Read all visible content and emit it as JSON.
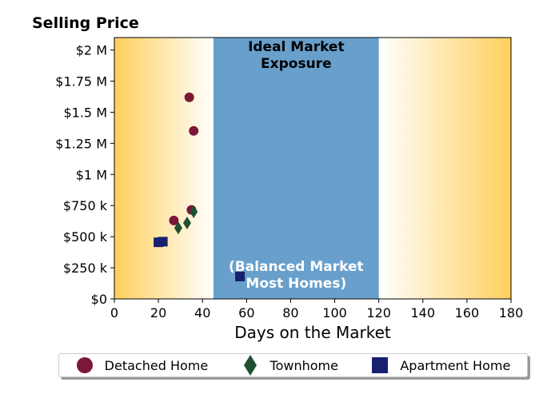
{
  "chart_data": {
    "type": "scatter",
    "title": "Selling Price",
    "xlabel": "Days on the Market",
    "ylabel": "",
    "xlim": [
      0,
      180
    ],
    "ylim": [
      0,
      2100000
    ],
    "x_ticks": [
      0,
      20,
      40,
      60,
      80,
      100,
      120,
      140,
      160,
      180
    ],
    "x_tick_labels": [
      "0",
      "20",
      "40",
      "60",
      "80",
      "100",
      "120",
      "140",
      "160",
      "180"
    ],
    "y_ticks": [
      0,
      250000,
      500000,
      750000,
      1000000,
      1250000,
      1500000,
      1750000,
      2000000
    ],
    "y_tick_labels": [
      "$0",
      "$250 k",
      "$500 k",
      "$750 k",
      "$1 M",
      "$1.25 M",
      "$1.5 M",
      "$1.75 M",
      "$2 M"
    ],
    "ideal_band": {
      "x_range": [
        45,
        120
      ],
      "label_top": "Ideal Market\nExposure",
      "label_bottom": "(Balanced Market\nMost Homes)",
      "color": "#689fcb"
    },
    "background_gradient_color": "#ffcf5c",
    "grid": false,
    "legend_position": "bottom",
    "series": [
      {
        "name": "Detached Home",
        "marker": "circle",
        "color": "#7b1737",
        "x": [
          34,
          36,
          27,
          35
        ],
        "y": [
          1620000,
          1350000,
          630000,
          715000
        ]
      },
      {
        "name": "Townhome",
        "marker": "diamond",
        "color": "#1f5130",
        "x": [
          29,
          33,
          36
        ],
        "y": [
          570000,
          610000,
          700000
        ]
      },
      {
        "name": "Apartment Home",
        "marker": "square",
        "color": "#17206e",
        "x": [
          20,
          22,
          57
        ],
        "y": [
          455000,
          460000,
          180000
        ]
      }
    ]
  }
}
